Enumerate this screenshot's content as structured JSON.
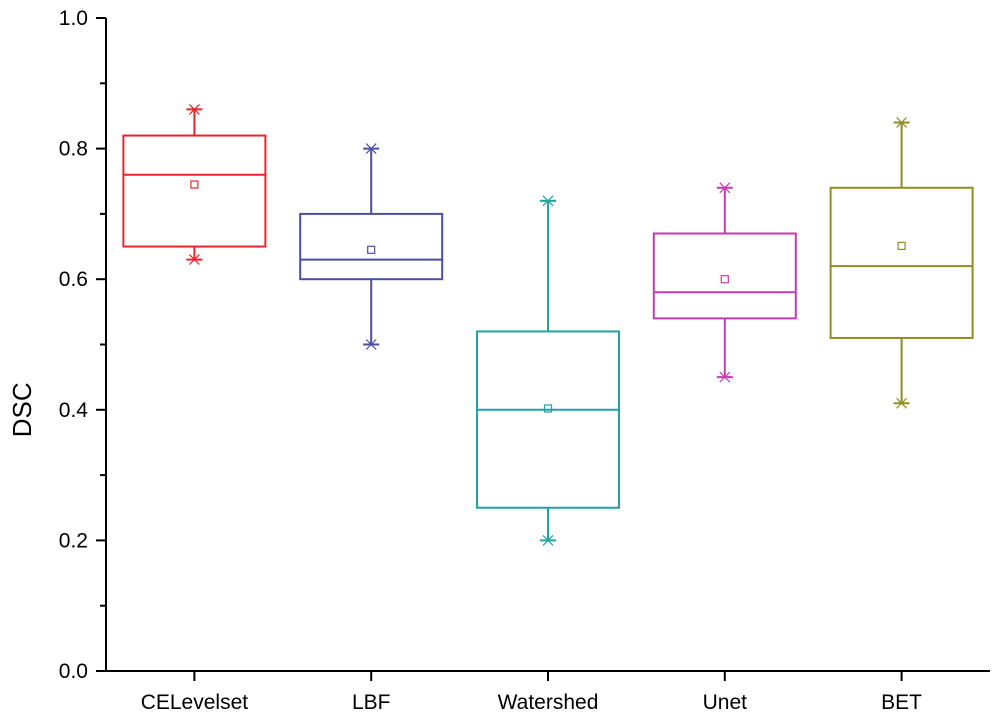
{
  "chart_data": {
    "type": "boxplot",
    "title": "",
    "xlabel": "",
    "ylabel": "DSC",
    "ylim": [
      0.0,
      1.0
    ],
    "y_ticks": [
      "0.0",
      "0.2",
      "0.4",
      "0.6",
      "0.8",
      "1.0"
    ],
    "grid": false,
    "categories": [
      "CELevelset",
      "LBF",
      "Watershed",
      "Unet",
      "BET"
    ],
    "series": [
      {
        "name": "CELevelset",
        "color": "#e8252c",
        "min": 0.63,
        "q1": 0.65,
        "median": 0.76,
        "q3": 0.82,
        "max": 0.86,
        "mean": 0.745
      },
      {
        "name": "LBF",
        "color": "#4b4ea5",
        "min": 0.5,
        "q1": 0.6,
        "median": 0.63,
        "q3": 0.7,
        "max": 0.8,
        "mean": 0.645
      },
      {
        "name": "Watershed",
        "color": "#22a3a3",
        "min": 0.2,
        "q1": 0.25,
        "median": 0.4,
        "q3": 0.52,
        "max": 0.72,
        "mean": 0.402
      },
      {
        "name": "Unet",
        "color": "#c53bb1",
        "min": 0.45,
        "q1": 0.54,
        "median": 0.58,
        "q3": 0.67,
        "max": 0.74,
        "mean": 0.6
      },
      {
        "name": "BET",
        "color": "#8f8f1f",
        "min": 0.41,
        "q1": 0.51,
        "median": 0.62,
        "q3": 0.74,
        "max": 0.84,
        "mean": 0.651
      }
    ]
  }
}
